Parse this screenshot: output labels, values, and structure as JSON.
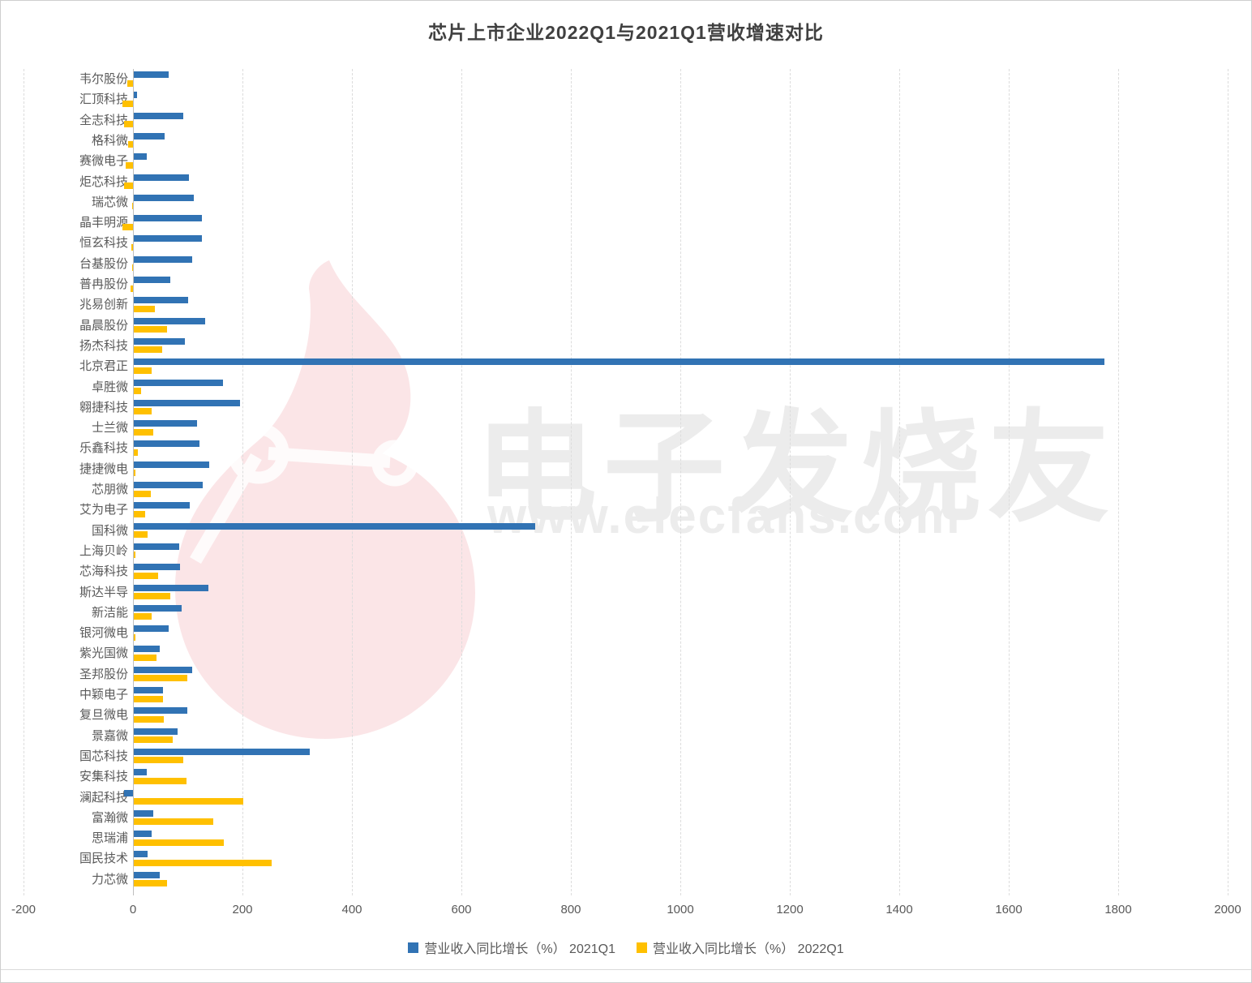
{
  "title": "芯片上市企业2022Q1与2021Q1营收增速对比",
  "watermark": {
    "brand": "电子发烧友",
    "url": "www.elecfans.com",
    "logo": "elecfans-flame-circuit-logo",
    "logo_color": "#e75d6c"
  },
  "legend": {
    "items": [
      {
        "label": "营业收入同比增长（%） 2021Q1",
        "color": "#3173B4"
      },
      {
        "label": "营业收入同比增长（%） 2022Q1",
        "color": "#FFC000"
      }
    ]
  },
  "chart_data": {
    "type": "bar",
    "orientation": "horizontal",
    "title": "芯片上市企业2022Q1与2021Q1营收增速对比",
    "xlabel": "",
    "ylabel": "",
    "xlim": [
      -200,
      2000
    ],
    "xticks": [
      -200,
      0,
      200,
      400,
      600,
      800,
      1000,
      1200,
      1400,
      1600,
      1800,
      2000
    ],
    "grid": "vertical-dashed",
    "legend_position": "bottom",
    "categories": [
      "韦尔股份",
      "汇顶科技",
      "全志科技",
      "格科微",
      "赛微电子",
      "炬芯科技",
      "瑞芯微",
      "晶丰明源",
      "恒玄科技",
      "台基股份",
      "普冉股份",
      "兆易创新",
      "晶晨股份",
      "扬杰科技",
      "北京君正",
      "卓胜微",
      "翱捷科技",
      "士兰微",
      "乐鑫科技",
      "捷捷微电",
      "芯朋微",
      "艾为电子",
      "国科微",
      "上海贝岭",
      "芯海科技",
      "斯达半导",
      "新洁能",
      "银河微电",
      "紫光国微",
      "圣邦股份",
      "中颖电子",
      "复旦微电",
      "景嘉微",
      "国芯科技",
      "安集科技",
      "澜起科技",
      "富瀚微",
      "思瑞浦",
      "国民技术",
      "力芯微"
    ],
    "series": [
      {
        "name": "营业收入同比增长（%） 2021Q1",
        "color": "#3173B4",
        "values": [
          64,
          6,
          91,
          57,
          24,
          100,
          110,
          124,
          125,
          106,
          67,
          99,
          130,
          94,
          1774,
          163,
          194,
          115,
          120,
          138,
          126,
          102,
          733,
          83,
          85,
          137,
          87,
          64,
          48,
          106,
          53,
          98,
          80,
          321,
          24,
          -16,
          36,
          32,
          25,
          47
        ]
      },
      {
        "name": "营业收入同比增长（%） 2022Q1",
        "color": "#FFC000",
        "values": [
          -10,
          -20,
          -17,
          -9,
          -14,
          -16,
          -2,
          -20,
          -3,
          -2,
          -5,
          39,
          60,
          52,
          32,
          14,
          33,
          36,
          8,
          2,
          31,
          21,
          25,
          3,
          45,
          67,
          32,
          2,
          42,
          98,
          53,
          55,
          71,
          91,
          96,
          200,
          145,
          165,
          252,
          60
        ]
      }
    ]
  }
}
